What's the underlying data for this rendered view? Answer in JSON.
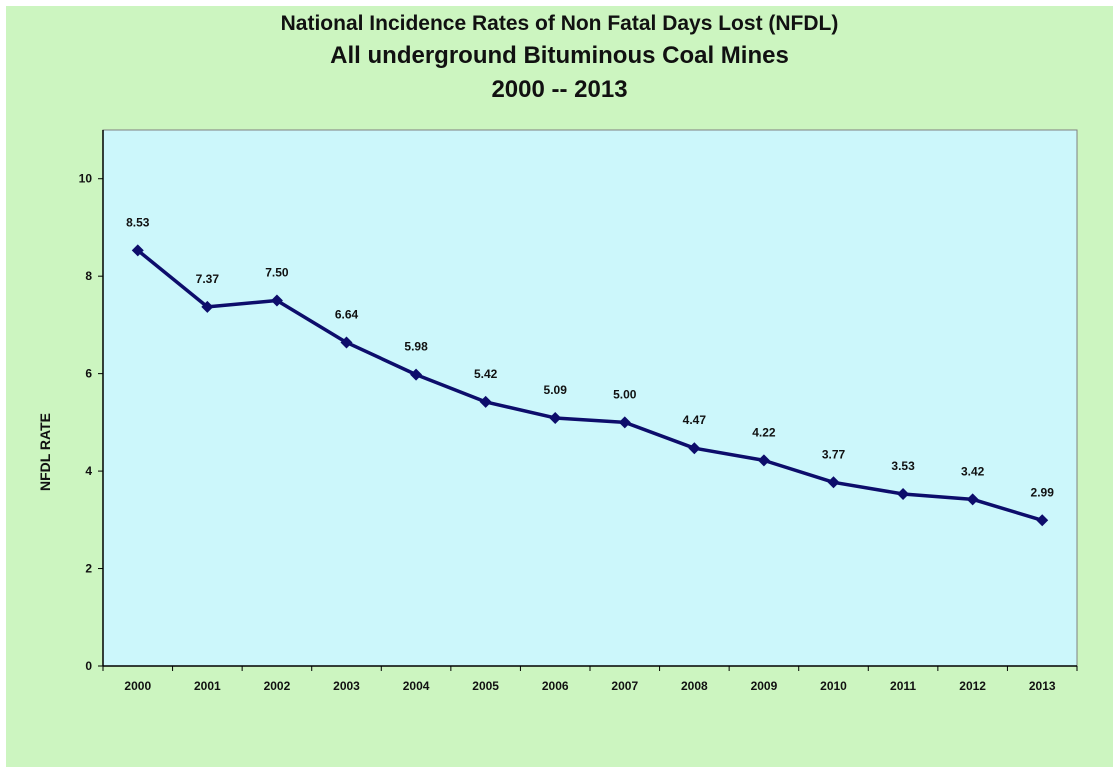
{
  "chart_data": {
    "type": "line",
    "title": "National Incidence Rates of Non Fatal Days Lost (NFDL)",
    "subtitle": "All underground Bituminous Coal Mines",
    "subtitle2": "2000 -- 2013",
    "xlabel": "",
    "ylabel": "NFDL RATE",
    "ylim": [
      0,
      11
    ],
    "yticks": [
      0,
      2,
      4,
      6,
      8,
      10
    ],
    "grid": false,
    "categories": [
      "2000",
      "2001",
      "2002",
      "2003",
      "2004",
      "2005",
      "2006",
      "2007",
      "2008",
      "2009",
      "2010",
      "2011",
      "2012",
      "2013"
    ],
    "values": [
      8.53,
      7.37,
      7.5,
      6.64,
      5.98,
      5.42,
      5.09,
      5.0,
      4.47,
      4.22,
      3.77,
      3.53,
      3.42,
      2.99
    ],
    "data_labels": [
      "8.53",
      "7.37",
      "7.50",
      "6.64",
      "5.98",
      "5.42",
      "5.09",
      "5.00",
      "4.47",
      "4.22",
      "3.77",
      "3.53",
      "3.42",
      "2.99"
    ],
    "colors": {
      "line": "#0d0d6b",
      "plot_background": "#ccf7fb",
      "chart_background": "#ccf5c0"
    }
  }
}
